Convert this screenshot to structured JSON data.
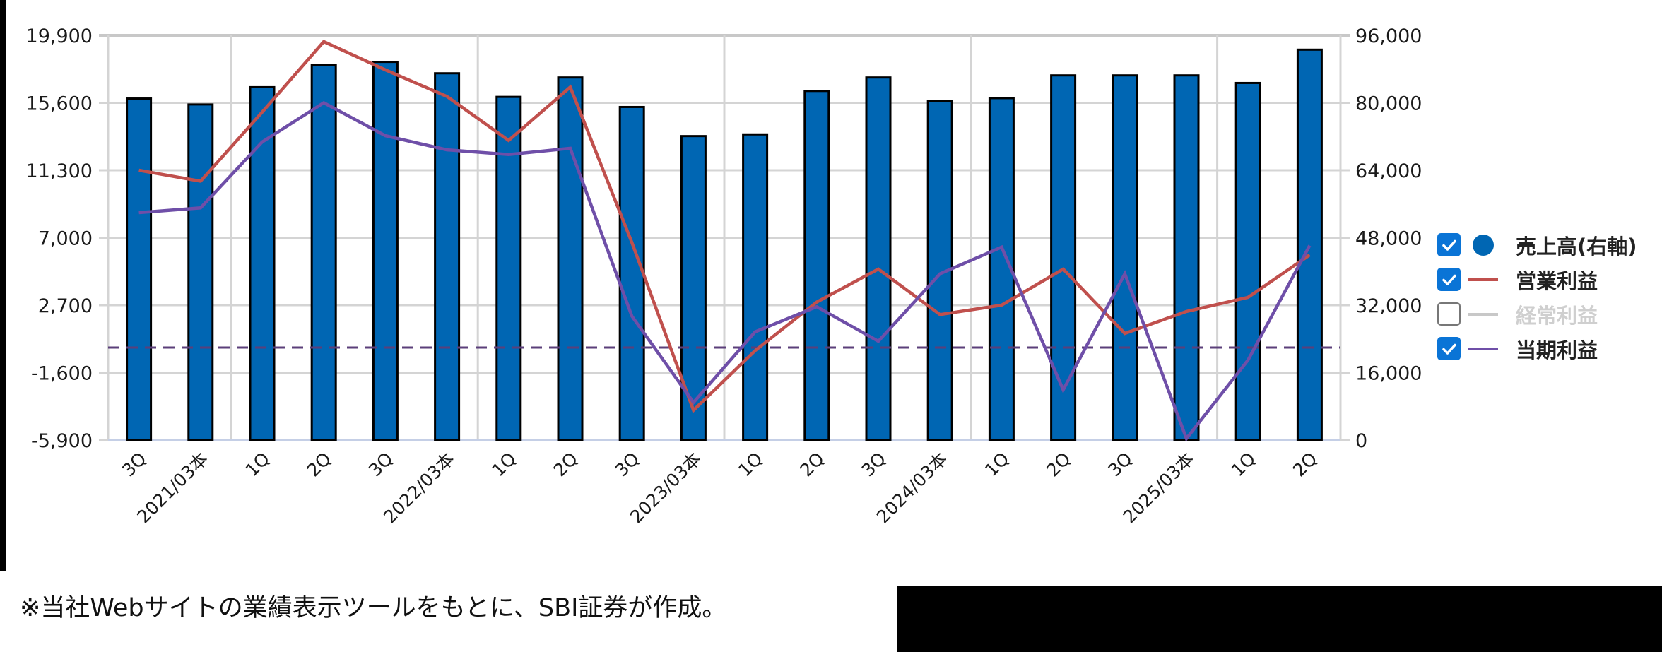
{
  "chart_data": {
    "type": "bar+line",
    "title": "",
    "categories": [
      "3Q",
      "2021/03本",
      "1Q",
      "2Q",
      "3Q",
      "2022/03本",
      "1Q",
      "2Q",
      "3Q",
      "2023/03本",
      "1Q",
      "2Q",
      "3Q",
      "2024/03本",
      "1Q",
      "2Q",
      "3Q",
      "2025/03本",
      "1Q",
      "2Q"
    ],
    "left_axis": {
      "ticks": [
        19900,
        15600,
        11300,
        7000,
        2700,
        -1600,
        -5900
      ],
      "tick_labels": [
        "19,900",
        "15,600",
        "11,300",
        "7,000",
        "2,700",
        "-1,600",
        "-5,900"
      ],
      "ylim": [
        -5900,
        19900
      ]
    },
    "right_axis": {
      "ticks": [
        96000,
        80000,
        64000,
        48000,
        32000,
        16000,
        0
      ],
      "tick_labels": [
        "96,000",
        "80,000",
        "64,000",
        "48,000",
        "32,000",
        "16,000",
        "0"
      ],
      "ylim": [
        0,
        96000
      ]
    },
    "zero_line": {
      "value": 0,
      "axis": "left",
      "style": "dashed",
      "color": "#5b3f7a"
    },
    "grid": true,
    "year_separators_after_index": [
      1,
      5,
      9,
      13,
      17
    ],
    "series": [
      {
        "name": "売上高(右軸)",
        "type": "bar",
        "axis": "right",
        "color": "#0066b3",
        "visible": true,
        "values": [
          81000,
          79600,
          83700,
          88900,
          89700,
          87000,
          81400,
          86000,
          79000,
          72100,
          72500,
          82800,
          86000,
          80500,
          81100,
          86500,
          86500,
          86500,
          84700,
          92600
        ]
      },
      {
        "name": "営業利益",
        "type": "line",
        "axis": "left",
        "color": "#c0504d",
        "visible": true,
        "values": [
          11300,
          10600,
          15000,
          19500,
          17700,
          16000,
          13200,
          16600,
          6700,
          -4000,
          -200,
          2900,
          5000,
          2100,
          2700,
          5000,
          900,
          2300,
          3200,
          5900
        ]
      },
      {
        "name": "経常利益",
        "type": "line",
        "axis": "left",
        "color": "#c8c8c8",
        "visible": false,
        "values": []
      },
      {
        "name": "当期利益",
        "type": "line",
        "axis": "left",
        "color": "#6f4fa8",
        "visible": true,
        "values": [
          8600,
          8900,
          13100,
          15600,
          13500,
          12600,
          12300,
          12700,
          2000,
          -3500,
          1000,
          2600,
          400,
          4700,
          6400,
          -2700,
          4700,
          -5800,
          -800,
          6500
        ]
      }
    ],
    "legend_position": "right"
  },
  "legend": {
    "items": [
      {
        "label": "売上高(右軸)",
        "checked": true,
        "symbol": "dot",
        "color": "#0066b3"
      },
      {
        "label": "営業利益",
        "checked": true,
        "symbol": "line",
        "color": "#c0504d"
      },
      {
        "label": "経常利益",
        "checked": false,
        "symbol": "line",
        "color": "#c8c8c8"
      },
      {
        "label": "当期利益",
        "checked": true,
        "symbol": "line",
        "color": "#6f4fa8"
      }
    ]
  },
  "footnote": "※当社Webサイトの業績表示ツールをもとに、SBI証券が作成。",
  "colors": {
    "grid": "#d4d4d4",
    "bar_fill": "#0066b3",
    "bar_stroke": "#000000",
    "axis_text": "#1a1a1a",
    "baseline": "#c5cfe6"
  }
}
